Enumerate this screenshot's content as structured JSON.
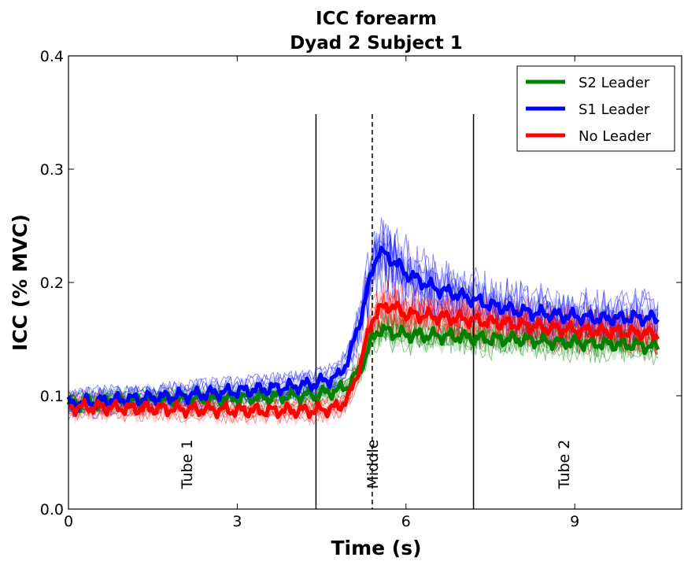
{
  "chart_data": {
    "type": "line",
    "title": "ICC forearm",
    "subtitle": "Dyad 2 Subject 1",
    "xlabel": "Time (s)",
    "ylabel": "ICC (% MVC)",
    "xlim": [
      0,
      10.9
    ],
    "ylim": [
      0.0,
      0.4
    ],
    "xticks": [
      0,
      3,
      6,
      9
    ],
    "xtick_labels": [
      "0",
      "3",
      "6",
      "9"
    ],
    "yticks": [
      0.0,
      0.1,
      0.2,
      0.3,
      0.4
    ],
    "ytick_labels": [
      "0.0",
      "0.1",
      "0.2",
      "0.3",
      "0.4"
    ],
    "grid": false,
    "legend_position": "top-right",
    "vertical_lines": [
      {
        "x": 4.4,
        "style": "solid"
      },
      {
        "x": 5.4,
        "style": "dashed"
      },
      {
        "x": 7.2,
        "style": "solid"
      }
    ],
    "region_labels": [
      {
        "text": "Tube 1",
        "x": 2.1
      },
      {
        "text": "Middle",
        "x": 5.4
      },
      {
        "text": "Tube 2",
        "x": 8.8
      }
    ],
    "x": [
      0,
      0.5,
      1,
      1.5,
      2,
      2.5,
      3,
      3.5,
      4,
      4.4,
      4.8,
      5.0,
      5.2,
      5.4,
      5.5,
      5.7,
      5.8,
      6.0,
      6.5,
      7,
      7.5,
      8,
      8.5,
      9,
      9.5,
      10,
      10.5
    ],
    "series": [
      {
        "name": "S2 Leader",
        "color": "#008000",
        "values": [
          0.092,
          0.094,
          0.095,
          0.096,
          0.097,
          0.097,
          0.098,
          0.099,
          0.1,
          0.101,
          0.105,
          0.11,
          0.125,
          0.15,
          0.158,
          0.157,
          0.155,
          0.154,
          0.153,
          0.152,
          0.15,
          0.15,
          0.148,
          0.147,
          0.146,
          0.145,
          0.143
        ]
      },
      {
        "name": "S1 Leader",
        "color": "#0000ff",
        "values": [
          0.093,
          0.095,
          0.097,
          0.098,
          0.1,
          0.102,
          0.104,
          0.106,
          0.108,
          0.111,
          0.117,
          0.135,
          0.17,
          0.21,
          0.228,
          0.222,
          0.218,
          0.208,
          0.195,
          0.188,
          0.18,
          0.175,
          0.172,
          0.17,
          0.168,
          0.169,
          0.168
        ]
      },
      {
        "name": "No Leader",
        "color": "#ff0000",
        "values": [
          0.09,
          0.09,
          0.089,
          0.089,
          0.088,
          0.088,
          0.087,
          0.087,
          0.087,
          0.087,
          0.09,
          0.1,
          0.13,
          0.168,
          0.175,
          0.18,
          0.178,
          0.172,
          0.17,
          0.168,
          0.165,
          0.163,
          0.16,
          0.158,
          0.157,
          0.156,
          0.154
        ]
      }
    ]
  }
}
